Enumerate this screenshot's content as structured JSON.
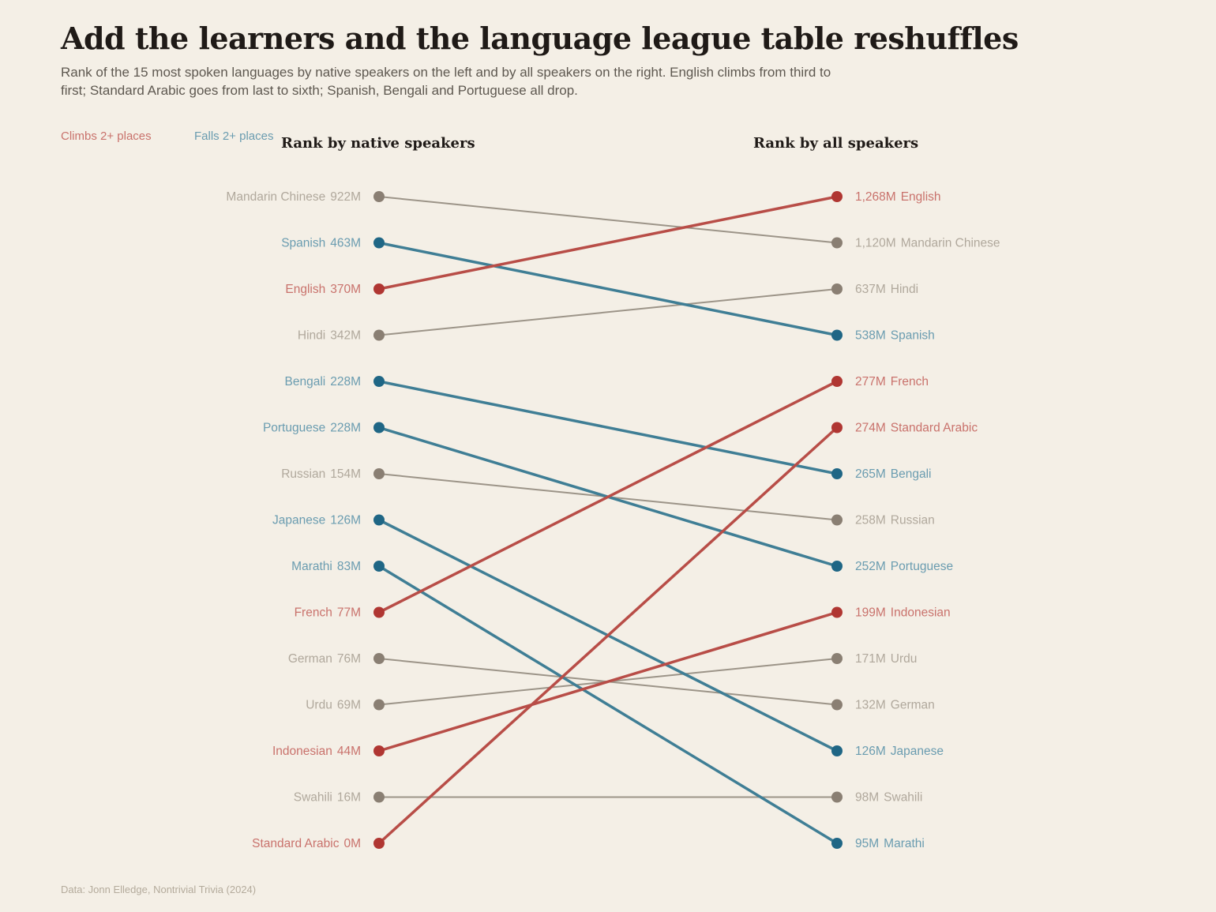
{
  "title": "Add the learners and the language league table reshuffles",
  "subtitle": "Rank of the 15 most spoken languages by native speakers on the left and by all speakers on the right. English climbs from third to first; Standard Arabic goes from last to sixth; Spanish, Bengali and Portuguese all drop.",
  "legend": {
    "climbs": "Climbs 2+ places",
    "falls": "Falls 2+ places"
  },
  "source": "Data: Jonn Elledge, Nontrivial Trivia (2024)",
  "colors": {
    "background": "#f4efe6",
    "climb_line": "#b84d47",
    "climb_dot": "#b03632",
    "climb_text": "#c9726c",
    "fall_line": "#3f7e95",
    "fall_dot": "#1f6685",
    "fall_text": "#6a9cb0",
    "neutral_line": "#9c9488",
    "neutral_dot": "#8a7f73",
    "neutral_text": "#b0a89c"
  },
  "chart_data": {
    "type": "slope",
    "left_label": "Rank by native speakers",
    "right_label": "Rank by all speakers",
    "unit": "M",
    "series": [
      {
        "name": "Mandarin Chinese",
        "native": 922,
        "native_label": "922M",
        "native_rank": 1,
        "all": 1120,
        "all_label": "1,120M",
        "all_rank": 2,
        "change": "neutral"
      },
      {
        "name": "Spanish",
        "native": 463,
        "native_label": "463M",
        "native_rank": 2,
        "all": 538,
        "all_label": "538M",
        "all_rank": 4,
        "change": "falls"
      },
      {
        "name": "English",
        "native": 370,
        "native_label": "370M",
        "native_rank": 3,
        "all": 1268,
        "all_label": "1,268M",
        "all_rank": 1,
        "change": "climbs"
      },
      {
        "name": "Hindi",
        "native": 342,
        "native_label": "342M",
        "native_rank": 4,
        "all": 637,
        "all_label": "637M",
        "all_rank": 3,
        "change": "neutral"
      },
      {
        "name": "Bengali",
        "native": 228,
        "native_label": "228M",
        "native_rank": 5,
        "all": 265,
        "all_label": "265M",
        "all_rank": 7,
        "change": "falls"
      },
      {
        "name": "Portuguese",
        "native": 228,
        "native_label": "228M",
        "native_rank": 6,
        "all": 252,
        "all_label": "252M",
        "all_rank": 9,
        "change": "falls"
      },
      {
        "name": "Russian",
        "native": 154,
        "native_label": "154M",
        "native_rank": 7,
        "all": 258,
        "all_label": "258M",
        "all_rank": 8,
        "change": "neutral"
      },
      {
        "name": "Japanese",
        "native": 126,
        "native_label": "126M",
        "native_rank": 8,
        "all": 126,
        "all_label": "126M",
        "all_rank": 13,
        "change": "falls"
      },
      {
        "name": "Marathi",
        "native": 83,
        "native_label": "83M",
        "native_rank": 9,
        "all": 95,
        "all_label": "95M",
        "all_rank": 15,
        "change": "falls"
      },
      {
        "name": "French",
        "native": 77,
        "native_label": "77M",
        "native_rank": 10,
        "all": 277,
        "all_label": "277M",
        "all_rank": 5,
        "change": "climbs"
      },
      {
        "name": "German",
        "native": 76,
        "native_label": "76M",
        "native_rank": 11,
        "all": 132,
        "all_label": "132M",
        "all_rank": 12,
        "change": "neutral"
      },
      {
        "name": "Urdu",
        "native": 69,
        "native_label": "69M",
        "native_rank": 12,
        "all": 171,
        "all_label": "171M",
        "all_rank": 11,
        "change": "neutral"
      },
      {
        "name": "Indonesian",
        "native": 44,
        "native_label": "44M",
        "native_rank": 13,
        "all": 199,
        "all_label": "199M",
        "all_rank": 10,
        "change": "climbs"
      },
      {
        "name": "Swahili",
        "native": 16,
        "native_label": "16M",
        "native_rank": 14,
        "all": 98,
        "all_label": "98M",
        "all_rank": 14,
        "change": "neutral"
      },
      {
        "name": "Standard Arabic",
        "native": 0,
        "native_label": "0M",
        "native_rank": 15,
        "all": 274,
        "all_label": "274M",
        "all_rank": 6,
        "change": "climbs"
      }
    ]
  }
}
